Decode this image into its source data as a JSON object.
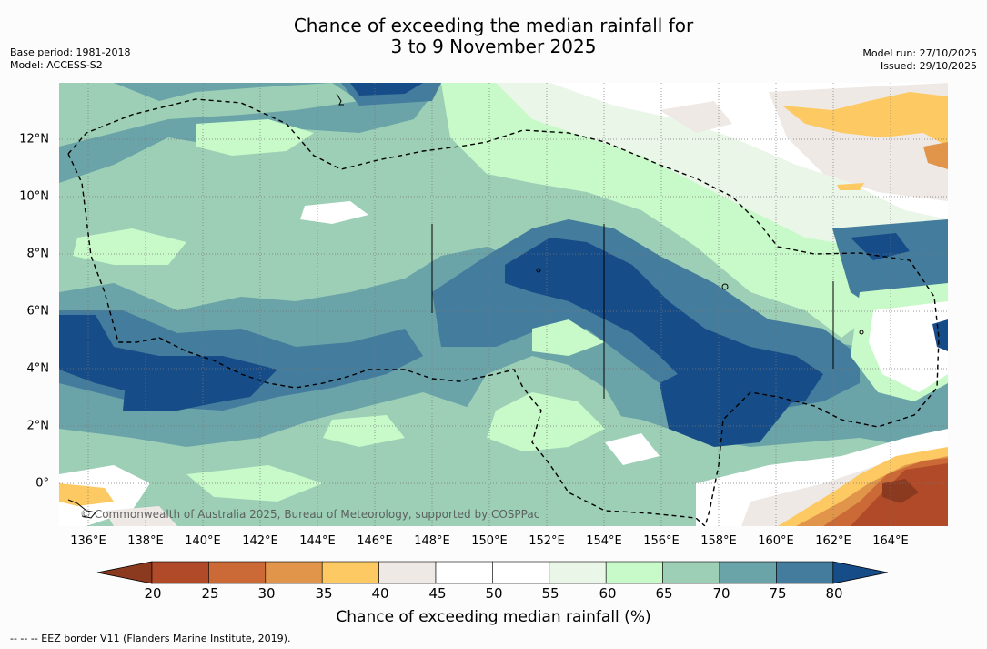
{
  "title": {
    "line1": "Chance of exceeding the median rainfall for",
    "line2": "3 to 9 November 2025"
  },
  "meta_left": {
    "base_period": "Base period: 1981-2018",
    "model": "Model: ACCESS-S2"
  },
  "meta_right": {
    "model_run": "Model run: 27/10/2025",
    "issued": "Issued: 29/10/2025"
  },
  "lat_labels": [
    "12°N",
    "10°N",
    "8°N",
    "6°N",
    "4°N",
    "2°N",
    "0°"
  ],
  "lon_labels": [
    "136°E",
    "138°E",
    "140°E",
    "142°E",
    "144°E",
    "146°E",
    "148°E",
    "150°E",
    "152°E",
    "154°E",
    "156°E",
    "158°E",
    "160°E",
    "162°E",
    "164°E"
  ],
  "copyright": "© Commonwealth of Australia 2025, Bureau of Meteorology, supported by COSPPac",
  "colorbar": {
    "ticks": [
      "20",
      "25",
      "30",
      "35",
      "40",
      "45",
      "50",
      "55",
      "60",
      "65",
      "70",
      "75",
      "80"
    ],
    "colors": [
      "#8b3a1f",
      "#b04a28",
      "#cc6a37",
      "#e0954a",
      "#fdc962",
      "#efe9e6",
      "#ffffff",
      "#ffffff",
      "#eaf6e8",
      "#c8f9c8",
      "#9ccfb6",
      "#6aa3a8",
      "#437c9c",
      "#164d88"
    ],
    "label": "Chance of exceeding median rainfall (%)"
  },
  "footnote": "--  --  -- EEZ border V11 (Flanders Marine Institute, 2019)."
}
